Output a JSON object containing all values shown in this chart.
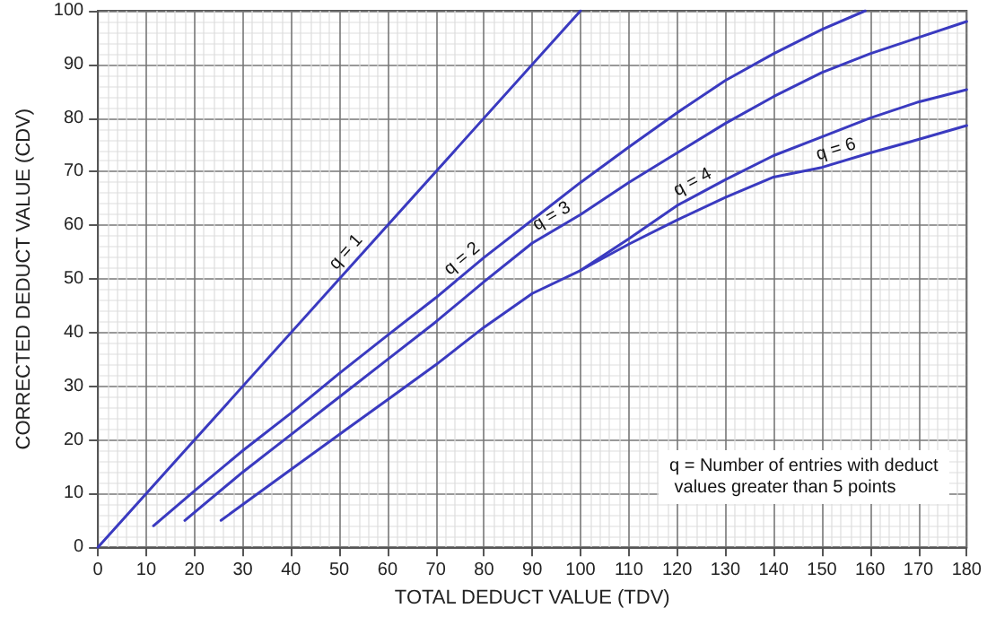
{
  "chart_data": {
    "type": "line",
    "xlabel": "TOTAL DEDUCT VALUE (TDV)",
    "ylabel": "CORRECTED DEDUCT VALUE (CDV)",
    "xlim": [
      0,
      180
    ],
    "ylim": [
      0,
      100
    ],
    "xticks": [
      0,
      10,
      20,
      30,
      40,
      50,
      60,
      70,
      80,
      90,
      100,
      110,
      120,
      130,
      140,
      150,
      160,
      170,
      180
    ],
    "yticks": [
      0,
      10,
      20,
      30,
      40,
      50,
      60,
      70,
      80,
      90,
      100
    ],
    "grid": true,
    "series": [
      {
        "color": "#3a3ac0",
        "x": [
          0,
          100
        ],
        "values": [
          0,
          100
        ]
      },
      {
        "color": "#3a3ac0",
        "x": [
          11.5,
          20,
          30,
          40,
          50,
          60,
          70,
          80,
          90,
          100,
          110,
          120,
          130,
          140,
          150,
          159
        ],
        "values": [
          4,
          10.5,
          18,
          25,
          32.4,
          39.5,
          46.5,
          54,
          61,
          68,
          74.6,
          81,
          87,
          92,
          96.5,
          100
        ]
      },
      {
        "color": "#3a3ac0",
        "x": [
          18,
          30,
          40,
          50,
          60,
          70,
          80,
          90,
          100,
          110,
          120,
          130,
          140,
          150,
          160,
          170,
          180
        ],
        "values": [
          5,
          14,
          21,
          28,
          35,
          42,
          49.5,
          56.7,
          62,
          68,
          73.5,
          79,
          84,
          88.5,
          92,
          95,
          98
        ]
      },
      {
        "color": "#3a3ac0",
        "x": [
          25.5,
          40,
          50,
          60,
          70,
          80,
          90,
          100,
          110,
          120,
          130,
          140,
          150,
          160,
          170,
          180
        ],
        "values": [
          5,
          14.5,
          21,
          27.5,
          34,
          41,
          47.3,
          51.6,
          57.5,
          63.7,
          68.5,
          73,
          76.5,
          80,
          83,
          85.3
        ]
      },
      {
        "color": "#3a3ac0",
        "x": [
          100,
          110,
          120,
          130,
          140,
          150,
          160,
          170,
          180
        ],
        "values": [
          51.6,
          56.5,
          61,
          65.2,
          69,
          70.8,
          73.5,
          76,
          78.6
        ]
      }
    ],
    "annotations": [
      {
        "text": "q = 1",
        "x": 53.4,
        "y": 53.4
      },
      {
        "text": "q = 2",
        "x": 77.2,
        "y": 51.9
      },
      {
        "text": "q = 3",
        "x": 95.4,
        "y": 59.6
      },
      {
        "text": "q = 4",
        "x": 124.5,
        "y": 65.9
      },
      {
        "text": "q = 6",
        "x": 153.7,
        "y": 71.8
      },
      "q = Number of entries with deduct values greater than 5 points"
    ]
  }
}
